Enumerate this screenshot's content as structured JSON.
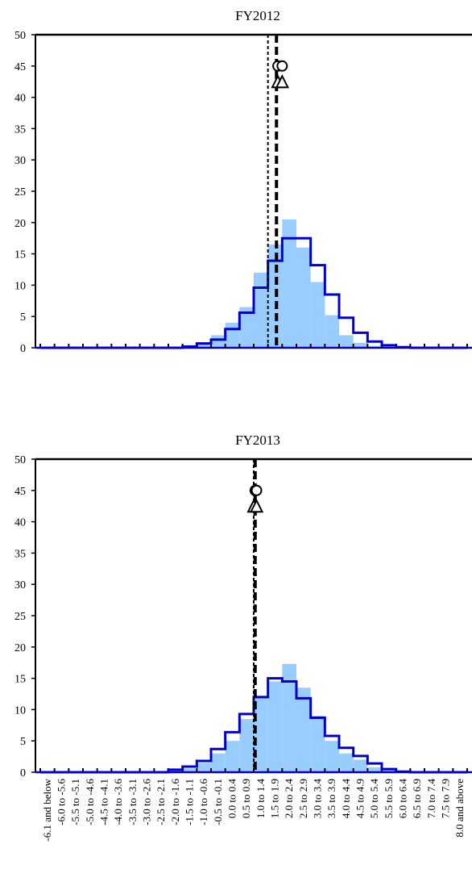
{
  "chart_data": {
    "type": "bar",
    "categories": [
      "-6.1 and below",
      "-6.0 to -5.6",
      "-5.5 to -5.1",
      "-5.0 to -4.6",
      "-4.5 to -4.1",
      "-4.0 to -3.6",
      "-3.5 to -3.1",
      "-3.0 to -2.6",
      "-2.5 to -2.1",
      "-2.0 to -1.6",
      "-1.5 to -1.1",
      "-1.0 to -0.6",
      "-0.5 to -0.1",
      "0.0 to 0.4",
      "0.5 to 0.9",
      "1.0 to 1.4",
      "1.5 to 1.9",
      "2.0 to 2.4",
      "2.5 to 2.9",
      "3.0 to 3.4",
      "3.5 to 3.9",
      "4.0 to 4.4",
      "4.5 to 4.9",
      "5.0 to 5.4",
      "5.5 to 5.9",
      "6.0 to 6.4",
      "6.5 to 6.9",
      "7.0 to 7.4",
      "7.5 to 7.9",
      "8.0 and above"
    ],
    "ylim": [
      0,
      50
    ],
    "yticks": [
      "0",
      "5",
      "10",
      "15",
      "20",
      "25",
      "30",
      "35",
      "40",
      "45",
      "50"
    ],
    "colors": {
      "bars": "#99ccff",
      "step": "#0000cc",
      "lines": "#000000"
    },
    "panels": [
      {
        "title": "FY2012",
        "series": [
          {
            "values": [
              0,
              0,
              0,
              0,
              0,
              0,
              0,
              0,
              0,
              0,
              0.2,
              0.6,
              2.0,
              4.0,
              6.5,
              12.0,
              16.5,
              20.5,
              16.0,
              10.5,
              5.2,
              2.0,
              0.8,
              0.3,
              0.1,
              0,
              0,
              0,
              0,
              0
            ]
          },
          {
            "values": [
              0,
              0,
              0,
              0,
              0,
              0,
              0,
              0,
              0,
              0,
              0.2,
              0.7,
              1.3,
              3.0,
              5.6,
              9.6,
              13.9,
              17.5,
              17.5,
              13.2,
              8.5,
              4.8,
              2.4,
              1.0,
              0.4,
              0.1,
              0,
              0,
              0,
              0
            ]
          }
        ],
        "vlines": [
          1.5,
          1.8
        ],
        "markers": [
          {
            "shape": "circle",
            "x": 1.85,
            "y": 45
          },
          {
            "shape": "circle",
            "x": 2.0,
            "y": 45
          },
          {
            "shape": "triangle",
            "x": 1.85,
            "y": 42.5
          },
          {
            "shape": "triangle",
            "x": 2.0,
            "y": 42.5
          }
        ]
      },
      {
        "title": "FY2013",
        "series": [
          {
            "values": [
              0,
              0,
              0,
              0,
              0,
              0,
              0,
              0,
              0,
              0.2,
              0.6,
              1.5,
              3.0,
              5.0,
              8.5,
              12.0,
              14.5,
              17.3,
              13.5,
              9.0,
              5.0,
              3.0,
              2.0,
              0.8,
              0.3,
              0.1,
              0,
              0,
              0,
              0
            ]
          },
          {
            "values": [
              0,
              0,
              0,
              0,
              0,
              0,
              0,
              0,
              0,
              0.4,
              0.9,
              1.8,
              3.7,
              6.4,
              9.3,
              12.0,
              15.0,
              14.5,
              11.8,
              8.7,
              5.8,
              3.9,
              2.6,
              1.4,
              0.5,
              0.1,
              0,
              0,
              0,
              0
            ]
          }
        ],
        "vlines": [
          1.0,
          1.05
        ],
        "markers": [
          {
            "shape": "circle",
            "x": 1.05,
            "y": 45
          },
          {
            "shape": "circle",
            "x": 1.1,
            "y": 45
          },
          {
            "shape": "triangle",
            "x": 1.0,
            "y": 42.5
          },
          {
            "shape": "triangle",
            "x": 1.1,
            "y": 42.5
          }
        ]
      }
    ]
  }
}
